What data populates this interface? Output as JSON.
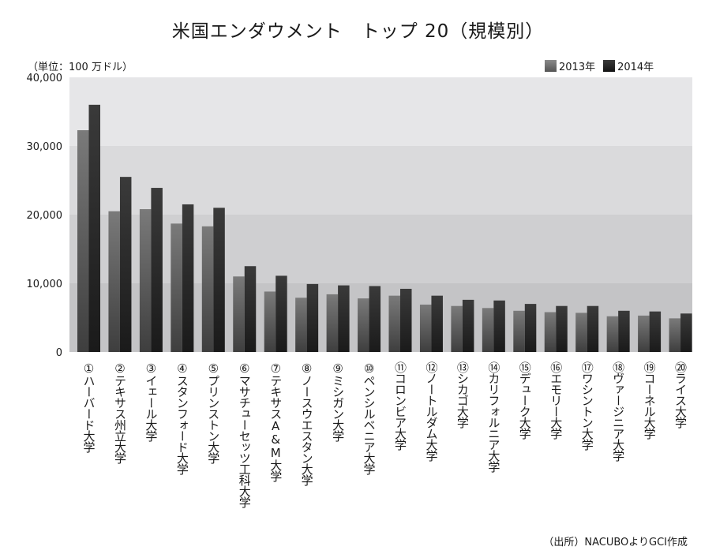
{
  "chart_data": {
    "type": "bar",
    "title": "米国エンダウメント　トップ 20（規模別）",
    "ylabel": "（単位：100 万ドル）",
    "ylim": [
      0,
      40000
    ],
    "yticks": [
      "0",
      "10,000",
      "20,000",
      "30,000",
      "40,000"
    ],
    "ytick_values": [
      0,
      10000,
      20000,
      30000,
      40000
    ],
    "grid": "horizontal bands",
    "legend_position": "top-right",
    "categories": [
      "①ハーバード大学",
      "②テキサス州立大学",
      "③イェール大学",
      "④スタンフォード大学",
      "⑤プリンストン大学",
      "⑥マサチューセッツ工科大学",
      "⑦テキサスA&M大学",
      "⑧ノースウエスタン大学",
      "⑨ミシガン大学",
      "⑩ペンシルベニア大学",
      "⑪コロンビア大学",
      "⑫ノートルダム大学",
      "⑬シカゴ大学",
      "⑭カリフォルニア大学",
      "⑮デューク大学",
      "⑯エモリー大学",
      "⑰ワシントン大学",
      "⑱ヴァージニア大学",
      "⑲コーネル大学",
      "⑳ライス大学"
    ],
    "series": [
      {
        "name": "2013年",
        "color": "#6e6e6e",
        "values": [
          32300,
          20500,
          20800,
          18700,
          18300,
          11000,
          8800,
          7900,
          8400,
          7800,
          8200,
          6900,
          6700,
          6400,
          6000,
          5800,
          5700,
          5200,
          5300,
          4900
        ]
      },
      {
        "name": "2014年",
        "color": "#2b2b2b",
        "values": [
          36000,
          25500,
          23900,
          21500,
          21000,
          12500,
          11100,
          9900,
          9700,
          9600,
          9200,
          8200,
          7600,
          7500,
          7000,
          6700,
          6700,
          6000,
          5900,
          5600
        ]
      }
    ],
    "band_colors": [
      "#c4c4c6",
      "#cfcfd1",
      "#dadadc",
      "#e6e6e8"
    ]
  },
  "source_note": "（出所）NACUBOよりGCI作成"
}
